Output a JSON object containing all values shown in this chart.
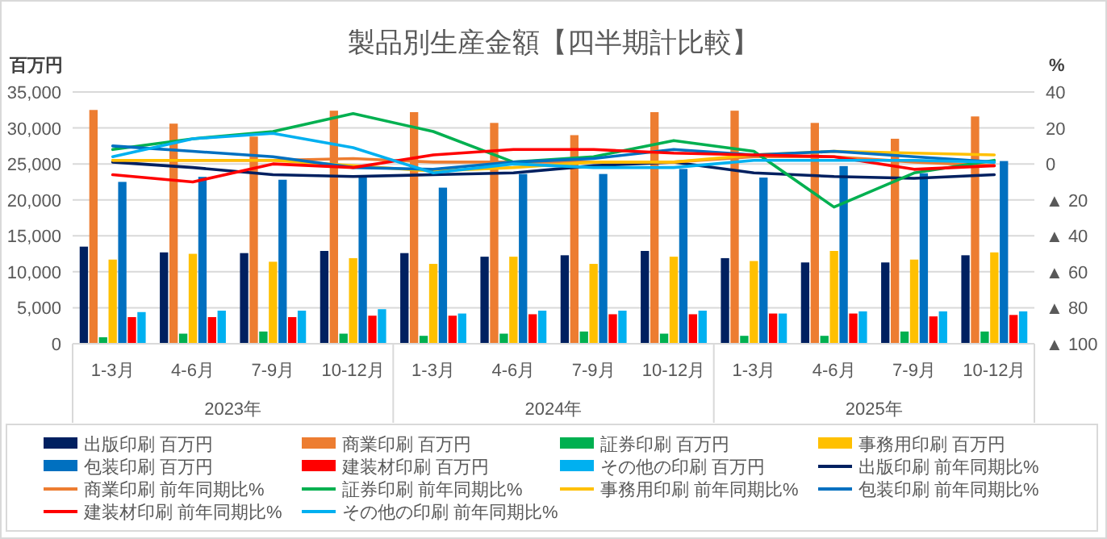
{
  "chart_data": {
    "type": "bar",
    "title": "製品別生産金額【四半期計比較】",
    "ylabel": "百万円",
    "y2label": "%",
    "categories": [
      "1-3月",
      "4-6月",
      "7-9月",
      "10-12月",
      "1-3月",
      "4-6月",
      "7-9月",
      "10-12月",
      "1-3月",
      "4-6月",
      "7-9月",
      "10-12月"
    ],
    "annotations": [
      "2023年",
      "2024年",
      "2025年"
    ],
    "ylim": [
      0,
      35000
    ],
    "yticks": [
      {
        "value": 0,
        "label": "0"
      },
      {
        "value": 5000,
        "label": "5,000"
      },
      {
        "value": 10000,
        "label": "10,000"
      },
      {
        "value": 15000,
        "label": "15,000"
      },
      {
        "value": 20000,
        "label": "20,000"
      },
      {
        "value": 25000,
        "label": "25,000"
      },
      {
        "value": 30000,
        "label": "30,000"
      },
      {
        "value": 35000,
        "label": "35,000"
      }
    ],
    "y2lim": [
      -100,
      40
    ],
    "y2ticks": [
      40,
      20,
      0,
      {
        "value": -20,
        "label": "▲ 20"
      },
      {
        "value": -40,
        "label": "▲ 40"
      },
      {
        "value": -60,
        "label": "▲ 60"
      },
      {
        "value": -80,
        "label": "▲ 80"
      },
      {
        "value": -100,
        "label": "▲ 100"
      }
    ],
    "grid": "y",
    "legend": "bottom",
    "marker": "none",
    "line_style": "solid",
    "series": [
      {
        "name": "出版印刷 百万円",
        "type": "bar",
        "color": "#002060",
        "values": [
          13500,
          12700,
          12600,
          12900,
          12600,
          12100,
          12300,
          12900,
          11900,
          11300,
          11300,
          12300
        ]
      },
      {
        "name": "商業印刷 百万円",
        "type": "bar",
        "color": "#ed7d31",
        "values": [
          32500,
          30600,
          28800,
          32400,
          32200,
          30700,
          29000,
          32200,
          32400,
          30700,
          28500,
          31600
        ]
      },
      {
        "name": "証券印刷 百万円",
        "type": "bar",
        "color": "#00b050",
        "values": [
          900,
          1400,
          1700,
          1400,
          1100,
          1400,
          1700,
          1400,
          1100,
          1100,
          1700,
          1700
        ]
      },
      {
        "name": "事務用印刷 百万円",
        "type": "bar",
        "color": "#ffc000",
        "values": [
          11700,
          12500,
          11400,
          11900,
          11100,
          12100,
          11100,
          12100,
          11500,
          12900,
          11700,
          12700
        ]
      },
      {
        "name": "包装印刷 百万円",
        "type": "bar",
        "color": "#0070c0",
        "values": [
          22500,
          23200,
          22800,
          23400,
          21700,
          23600,
          23600,
          24300,
          23100,
          24700,
          23700,
          25400
        ]
      },
      {
        "name": "建装材印刷 百万円",
        "type": "bar",
        "color": "#ff0000",
        "values": [
          3700,
          3700,
          3700,
          3900,
          3900,
          4100,
          4100,
          4100,
          4200,
          4200,
          3800,
          4000
        ]
      },
      {
        "name": "その他の印刷 百万円",
        "type": "bar",
        "color": "#00b0f0",
        "values": [
          4400,
          4600,
          4600,
          4800,
          4200,
          4600,
          4600,
          4600,
          4200,
          4500,
          4500,
          4500
        ]
      },
      {
        "name": "出版印刷 前年同期比%",
        "type": "line",
        "axis": "y2",
        "color": "#002060",
        "values": [
          1,
          -2,
          -6,
          -7,
          -6,
          -5,
          -1,
          1,
          -5,
          -7,
          -8,
          -6
        ]
      },
      {
        "name": "商業印刷 前年同期比%",
        "type": "line",
        "axis": "y2",
        "color": "#ed7d31",
        "values": [
          2,
          2,
          2,
          3,
          1,
          1,
          1,
          1,
          4,
          4,
          1,
          -1
        ]
      },
      {
        "name": "証券印刷 前年同期比%",
        "type": "line",
        "axis": "y2",
        "color": "#00b050",
        "values": [
          8,
          14,
          18,
          28,
          18,
          1,
          4,
          13,
          7,
          -24,
          -5,
          2
        ]
      },
      {
        "name": "事務用印刷 前年同期比%",
        "type": "line",
        "axis": "y2",
        "color": "#ffc000",
        "values": [
          2,
          2,
          2,
          -1,
          -4,
          -2,
          1,
          1,
          5,
          7,
          6,
          5
        ]
      },
      {
        "name": "包装印刷 前年同期比%",
        "type": "line",
        "axis": "y2",
        "color": "#0070c0",
        "values": [
          10,
          7,
          4,
          -2,
          -3,
          1,
          3,
          8,
          5,
          7,
          4,
          1
        ]
      },
      {
        "name": "建装材印刷 前年同期比%",
        "type": "line",
        "axis": "y2",
        "color": "#ff0000",
        "values": [
          -6,
          -10,
          0,
          -2,
          5,
          8,
          8,
          6,
          5,
          4,
          -3,
          -1
        ]
      },
      {
        "name": "その他の印刷 前年同期比%",
        "type": "line",
        "axis": "y2",
        "color": "#00b0f0",
        "values": [
          4,
          14,
          17,
          9,
          -5,
          0,
          -2,
          -2,
          2,
          2,
          2,
          1
        ]
      }
    ]
  }
}
